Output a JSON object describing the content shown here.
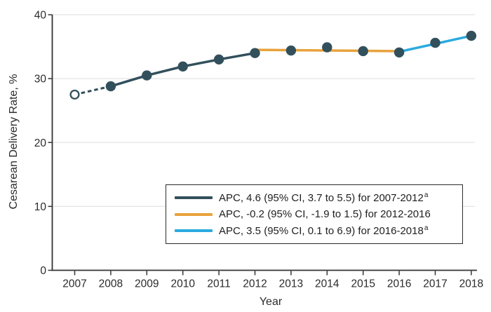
{
  "chart_data": {
    "type": "line",
    "title": "",
    "xlabel": "Year",
    "ylabel": "Cesarean Delivery Rate, %",
    "x": [
      2007,
      2008,
      2009,
      2010,
      2011,
      2012,
      2013,
      2014,
      2015,
      2016,
      2017,
      2018
    ],
    "ylim": [
      0,
      40
    ],
    "yticks": [
      0,
      10,
      20,
      30,
      40
    ],
    "grid": "horizontal",
    "points": [
      {
        "year": 2007,
        "value": 27.5,
        "marker": "open"
      },
      {
        "year": 2008,
        "value": 28.8,
        "marker": "filled"
      },
      {
        "year": 2009,
        "value": 30.5,
        "marker": "filled"
      },
      {
        "year": 2010,
        "value": 31.9,
        "marker": "filled"
      },
      {
        "year": 2011,
        "value": 33.0,
        "marker": "filled"
      },
      {
        "year": 2012,
        "value": 34.0,
        "marker": "filled"
      },
      {
        "year": 2013,
        "value": 34.4,
        "marker": "filled"
      },
      {
        "year": 2014,
        "value": 34.9,
        "marker": "filled"
      },
      {
        "year": 2015,
        "value": 34.3,
        "marker": "filled"
      },
      {
        "year": 2016,
        "value": 34.1,
        "marker": "filled"
      },
      {
        "year": 2017,
        "value": 35.6,
        "marker": "filled"
      },
      {
        "year": 2018,
        "value": 36.7,
        "marker": "filled"
      }
    ],
    "segments": [
      {
        "name": "dashed-lead-in-2007-2008",
        "color": "#32505C",
        "style": "dashed",
        "points": [
          [
            2007,
            27.5
          ],
          [
            2008,
            28.8
          ]
        ]
      },
      {
        "name": "apc-2007-2012",
        "color": "#32505C",
        "style": "solid",
        "points": [
          [
            2008,
            28.8
          ],
          [
            2009,
            30.5
          ],
          [
            2010,
            31.9
          ],
          [
            2011,
            33.0
          ],
          [
            2012,
            34.0
          ]
        ]
      },
      {
        "name": "apc-2012-2016",
        "color": "#E8A23C",
        "style": "solid",
        "points": [
          [
            2012,
            34.5
          ],
          [
            2016,
            34.3
          ]
        ]
      },
      {
        "name": "apc-2016-2018",
        "color": "#2AAADF",
        "style": "solid",
        "points": [
          [
            2016,
            34.2
          ],
          [
            2018,
            36.7
          ]
        ]
      }
    ],
    "legend": {
      "position": "inside-bottom-right",
      "entries": [
        {
          "color": "#32505C",
          "label": "APC, 4.6 (95% CI, 3.7 to 5.5) for 2007-2012",
          "superscript": "a"
        },
        {
          "color": "#E8A23C",
          "label": "APC, -0.2 (95% CI, -1.9 to 1.5) for 2012-2016",
          "superscript": ""
        },
        {
          "color": "#2AAADF",
          "label": "APC, 3.5 (95% CI, 0.1 to 6.9) for 2016-2018",
          "superscript": "a"
        }
      ]
    },
    "colors": {
      "line_dark": "#32505C",
      "line_orange": "#E8A23C",
      "line_blue": "#2AAADF",
      "marker": "#32505C",
      "gridline": "#E4E4E4",
      "axis": "#333333",
      "text": "#2B2B2B"
    }
  }
}
